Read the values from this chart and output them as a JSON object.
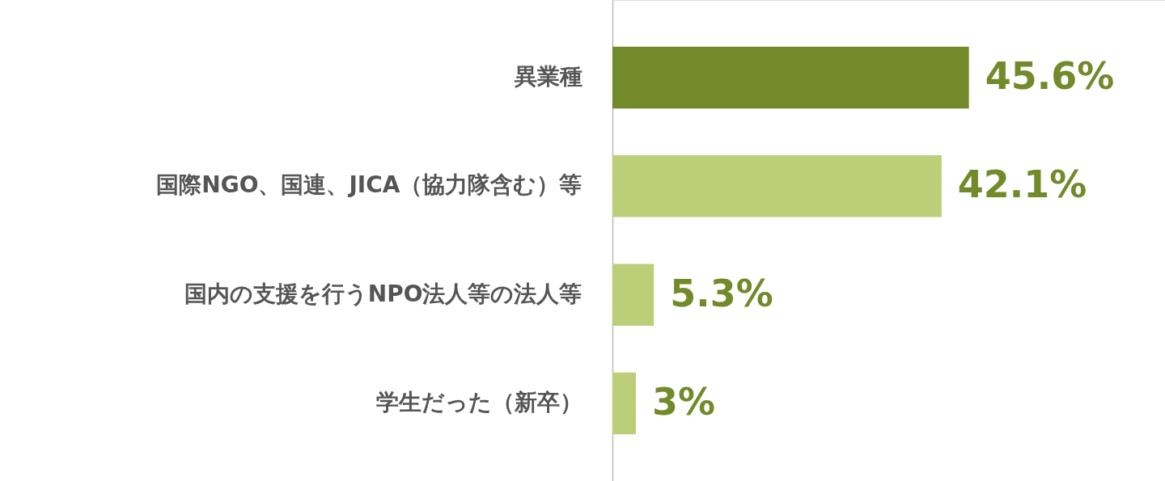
{
  "chart_data": {
    "type": "bar",
    "orientation": "horizontal",
    "categories": [
      "異業種",
      "国際NGO、国連、JICA（協力隊含む）等",
      "国内の支援を行うNPO法人等の法人等",
      "学生だった（新卒）"
    ],
    "values": [
      45.6,
      42.1,
      5.3,
      3
    ],
    "colors": [
      "#728a2a",
      "#bccf78",
      "#bccf78",
      "#bccf78"
    ],
    "value_labels": [
      "45.6%",
      "42.1%",
      "5.3%",
      "3%"
    ]
  }
}
